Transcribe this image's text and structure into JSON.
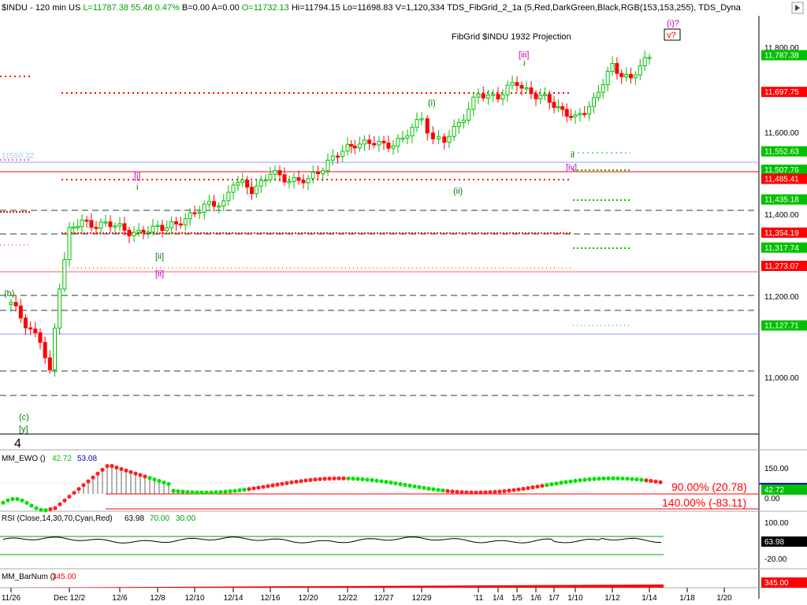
{
  "header": {
    "symbol": "$INDU",
    "interval": "120 min",
    "market": "US",
    "last": "L=11787.38",
    "change": "55.48",
    "change_pct": "0.47%",
    "bid": "B=0.00",
    "ask": "A=0.00",
    "open": "O=11732.13",
    "high": "Hi=11794.15",
    "low": "Lo=11698.83",
    "volume": "V=1,120,334",
    "study1": "TDS_FibGrid_2_1a (5,Red,DarkGreen,Black,RGB(153,153,255),",
    "study2": "TDS_Dyna"
  },
  "chart_data": [
    {
      "type": "candlestick",
      "title": "FibGrid $INDU 1932 Projection",
      "ylim": [
        10900,
        11850
      ],
      "y_ticks": [
        "11,800.00",
        "11,600.00",
        "11,400.00",
        "11,200.00",
        "11,000.00"
      ],
      "x_ticks": [
        "11/26",
        "Dec 12/2",
        "12/6",
        "12/8",
        "12/10",
        "12/14",
        "12/16",
        "12/20",
        "12/22",
        "12/27",
        "12/29",
        "'11",
        "1/4",
        "1/5",
        "1/6",
        "1/7",
        "1/10",
        "1/12",
        "1/14",
        "1/18",
        "1/20"
      ],
      "x_dates": [
        "2010-11-26",
        "2010-12-02",
        "2010-12-06",
        "2010-12-08",
        "2010-12-10",
        "2010-12-14",
        "2010-12-16",
        "2010-12-20",
        "2010-12-22",
        "2010-12-27",
        "2010-12-29",
        "2011-01-03",
        "2011-01-04",
        "2011-01-05",
        "2011-01-06",
        "2011-01-07",
        "2011-01-10",
        "2011-01-12",
        "2011-01-14",
        "2011-01-18",
        "2011-01-20"
      ],
      "close_path": [
        [
          "2010-11-26",
          11180
        ],
        [
          "2010-11-29",
          11090
        ],
        [
          "2010-11-30",
          11010
        ],
        [
          "2010-12-01",
          11230
        ],
        [
          "2010-12-02",
          11360
        ],
        [
          "2010-12-03",
          11380
        ],
        [
          "2010-12-06",
          11370
        ],
        [
          "2010-12-07",
          11350
        ],
        [
          "2010-12-08",
          11372
        ],
        [
          "2010-12-09",
          11370
        ],
        [
          "2010-12-10",
          11410
        ],
        [
          "2010-12-13",
          11430
        ],
        [
          "2010-12-14",
          11480
        ],
        [
          "2010-12-15",
          11460
        ],
        [
          "2010-12-16",
          11500
        ],
        [
          "2010-12-17",
          11490
        ],
        [
          "2010-12-20",
          11480
        ],
        [
          "2010-12-21",
          11530
        ],
        [
          "2010-12-22",
          11560
        ],
        [
          "2010-12-23",
          11575
        ],
        [
          "2010-12-27",
          11570
        ],
        [
          "2010-12-28",
          11580
        ],
        [
          "2010-12-29",
          11640
        ],
        [
          "2010-12-30",
          11580
        ],
        [
          "2010-12-31",
          11577
        ],
        [
          "2011-01-03",
          11690
        ],
        [
          "2011-01-04",
          11690
        ],
        [
          "2011-01-05",
          11720
        ],
        [
          "2011-01-06",
          11690
        ],
        [
          "2011-01-07",
          11670
        ],
        [
          "2011-01-10",
          11630
        ],
        [
          "2011-01-11",
          11680
        ],
        [
          "2011-01-12",
          11760
        ],
        [
          "2011-01-13",
          11730
        ],
        [
          "2011-01-14",
          11787
        ]
      ],
      "price_levels": [
        {
          "label": "11,787.38",
          "color": "#00c000",
          "style": "last"
        },
        {
          "label": "11,697.75",
          "color": "#ff0000",
          "style": "red-dotted"
        },
        {
          "label": "11,552.63",
          "color": "#00c000",
          "style": "green-dotted"
        },
        {
          "label": "11,507.76",
          "color": "#00c000",
          "style": "green-dotted"
        },
        {
          "label": "11,485.41",
          "color": "#ff0000",
          "style": "red-line"
        },
        {
          "label": "11,435.18",
          "color": "#00c000",
          "style": "dash"
        },
        {
          "label": "11,354.19",
          "color": "#ff0000",
          "style": "dash-red"
        },
        {
          "label": "11,317.74",
          "color": "#00c000",
          "style": "green-dotted"
        },
        {
          "label": "11,273.07",
          "color": "#ff0000",
          "style": "red-line"
        },
        {
          "label": "11,127.71",
          "color": "#00c000",
          "style": "blue-line"
        }
      ],
      "level_left": "11550.32",
      "wave_labels": [
        "(i)?",
        "v?",
        "[iii]",
        "(i)",
        "[i]",
        "i",
        "[ii]",
        "ii",
        "(ii)",
        "[iv]",
        "(b)",
        "(c)",
        "[y]",
        "4",
        "[ii]",
        "i",
        "ii"
      ]
    },
    {
      "type": "line",
      "title": "MM_EWO ()",
      "values_text": [
        "42.72",
        "53.08"
      ],
      "y_ticks": [
        "150.00",
        "42.72",
        "0.00"
      ],
      "fib_labels": [
        "90.00% (20.78)",
        "140.00% (-83.11)"
      ]
    },
    {
      "type": "line",
      "title": "RSI (Close,14,30,70,Cyan,Red)",
      "values_text": [
        "63.98",
        "70.00",
        "30.00"
      ],
      "y_ticks": [
        "100.00",
        "63.98",
        "-20.00"
      ]
    },
    {
      "type": "line",
      "title": "MM_BarNum ()",
      "values_text": [
        "345.00"
      ],
      "y_ticks": [
        "345.00"
      ]
    }
  ],
  "colors": {
    "up": "#00c000",
    "down": "#ff0000",
    "ewo": "#00e000",
    "label_red": "#ff0000",
    "label_green": "#00c000",
    "wave_purple": "#c000c0",
    "wave_green": "#008000",
    "blue_line": "#9999ff"
  }
}
